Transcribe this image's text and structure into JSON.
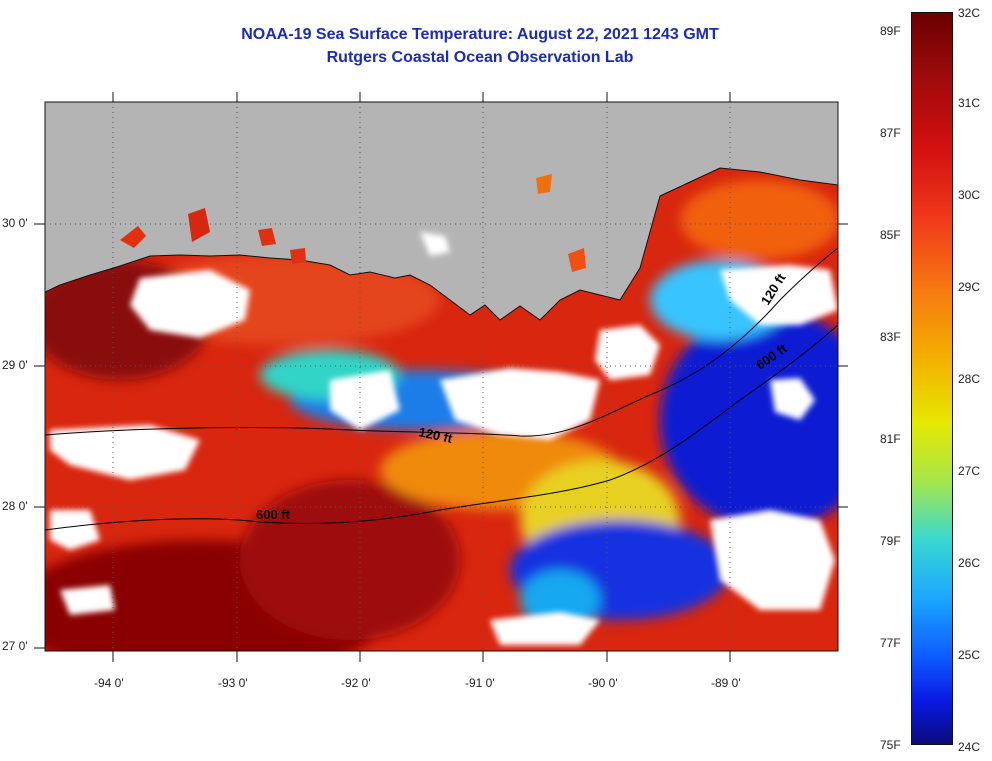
{
  "header": {
    "title_line1": "NOAA-19 Sea Surface Temperature:  August 22, 2021 1243 GMT",
    "title_line2": "Rutgers Coastal Ocean Observation Lab"
  },
  "map": {
    "lon_labels": [
      "-94 0'",
      "-93 0'",
      "-92 0'",
      "-91 0'",
      "-90 0'",
      "-89 0'"
    ],
    "lat_labels": [
      "30 0'",
      "29 0'",
      "28 0'",
      "27 0'"
    ],
    "isobath_labels": [
      "120 ft",
      "600 ft",
      "120 ft",
      "600 ft"
    ],
    "colors": {
      "land": "#b4b4b4",
      "cloud": "#ffffff",
      "warm": "#c8140f",
      "cool": "#0a1ad2"
    }
  },
  "colorbar": {
    "celsius_labels": [
      "32C",
      "31C",
      "30C",
      "29C",
      "28C",
      "27C",
      "26C",
      "25C",
      "24C"
    ],
    "fahrenheit_labels": [
      "89F",
      "87F",
      "85F",
      "83F",
      "81F",
      "79F",
      "77F",
      "75F"
    ]
  }
}
